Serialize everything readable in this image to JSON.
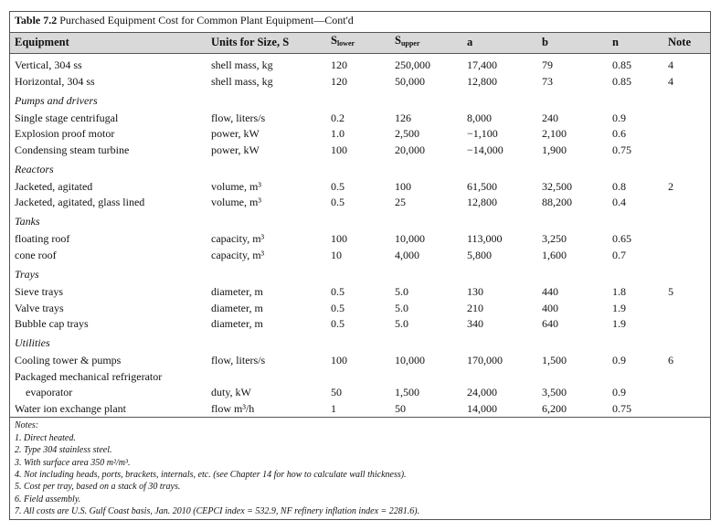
{
  "table": {
    "title": {
      "label": "Table 7.2",
      "text": "Purchased Equipment Cost for Common Plant Equipment—Cont'd"
    },
    "header": {
      "equipment": "Equipment",
      "units": "Units for Size, S",
      "s_lower": {
        "base": "S",
        "sub": "lower"
      },
      "s_upper": {
        "base": "S",
        "sub": "upper"
      },
      "a": "a",
      "b": "b",
      "n": "n",
      "note": "Note"
    },
    "rows": [
      {
        "equipment": "Vertical, 304 ss",
        "units": "shell mass, kg",
        "s_lower": "120",
        "s_upper": "250,000",
        "a": "17,400",
        "b": "79",
        "n": "0.85",
        "note": "4"
      },
      {
        "equipment": "Horizontal, 304 ss",
        "units": "shell mass, kg",
        "s_lower": "120",
        "s_upper": "50,000",
        "a": "12,800",
        "b": "73",
        "n": "0.85",
        "note": "4"
      },
      {
        "section": "Pumps and drivers"
      },
      {
        "equipment": "Single stage centrifugal",
        "units": "flow, liters/s",
        "s_lower": "0.2",
        "s_upper": "126",
        "a": "8,000",
        "b": "240",
        "n": "0.9"
      },
      {
        "equipment": "Explosion proof motor",
        "units": "power, kW",
        "s_lower": "1.0",
        "s_upper": "2,500",
        "a": "−1,100",
        "b": "2,100",
        "n": "0.6"
      },
      {
        "equipment": "Condensing steam turbine",
        "units": "power, kW",
        "s_lower": "100",
        "s_upper": "20,000",
        "a": "−14,000",
        "b": "1,900",
        "n": "0.75"
      },
      {
        "section": "Reactors"
      },
      {
        "equipment": "Jacketed, agitated",
        "units": "volume, m³",
        "s_lower": "0.5",
        "s_upper": "100",
        "a": "61,500",
        "b": "32,500",
        "n": "0.8",
        "note": "2"
      },
      {
        "equipment": "Jacketed, agitated, glass lined",
        "units": "volume, m³",
        "s_lower": "0.5",
        "s_upper": "25",
        "a": "12,800",
        "b": "88,200",
        "n": "0.4"
      },
      {
        "section": "Tanks"
      },
      {
        "equipment": "floating roof",
        "units": "capacity, m³",
        "s_lower": "100",
        "s_upper": "10,000",
        "a": "113,000",
        "b": "3,250",
        "n": "0.65"
      },
      {
        "equipment": "cone roof",
        "units": "capacity, m³",
        "s_lower": "10",
        "s_upper": "4,000",
        "a": "5,800",
        "b": "1,600",
        "n": "0.7"
      },
      {
        "section": "Trays"
      },
      {
        "equipment": "Sieve trays",
        "units": "diameter, m",
        "s_lower": "0.5",
        "s_upper": "5.0",
        "a": "130",
        "b": "440",
        "n": "1.8",
        "note": "5"
      },
      {
        "equipment": "Valve trays",
        "units": "diameter, m",
        "s_lower": "0.5",
        "s_upper": "5.0",
        "a": "210",
        "b": "400",
        "n": "1.9"
      },
      {
        "equipment": "Bubble cap trays",
        "units": "diameter, m",
        "s_lower": "0.5",
        "s_upper": "5.0",
        "a": "340",
        "b": "640",
        "n": "1.9"
      },
      {
        "section": "Utilities"
      },
      {
        "equipment": "Cooling tower & pumps",
        "units": "flow, liters/s",
        "s_lower": "100",
        "s_upper": "10,000",
        "a": "170,000",
        "b": "1,500",
        "n": "0.9",
        "note": "6"
      },
      {
        "equipment": "Packaged mechanical refrigerator"
      },
      {
        "equipment": "evaporator",
        "indent": true,
        "units": "duty, kW",
        "s_lower": "50",
        "s_upper": "1,500",
        "a": "24,000",
        "b": "3,500",
        "n": "0.9"
      },
      {
        "equipment": "Water ion exchange plant",
        "units": "flow m³/h",
        "s_lower": "1",
        "s_upper": "50",
        "a": "14,000",
        "b": "6,200",
        "n": "0.75"
      }
    ],
    "notes_title": "Notes:",
    "notes": [
      "1. Direct heated.",
      "2. Type 304 stainless steel.",
      "3. With surface area 350 m²/m³.",
      "4. Not including heads, ports, brackets, internals, etc. (see Chapter 14 for how to calculate wall thickness).",
      "5. Cost per tray, based on a stack of 30 trays.",
      "6. Field assembly.",
      "7. All costs are U.S. Gulf Coast basis, Jan. 2010 (CEPCI index = 532.9, NF refinery inflation index = 2281.6)."
    ]
  }
}
